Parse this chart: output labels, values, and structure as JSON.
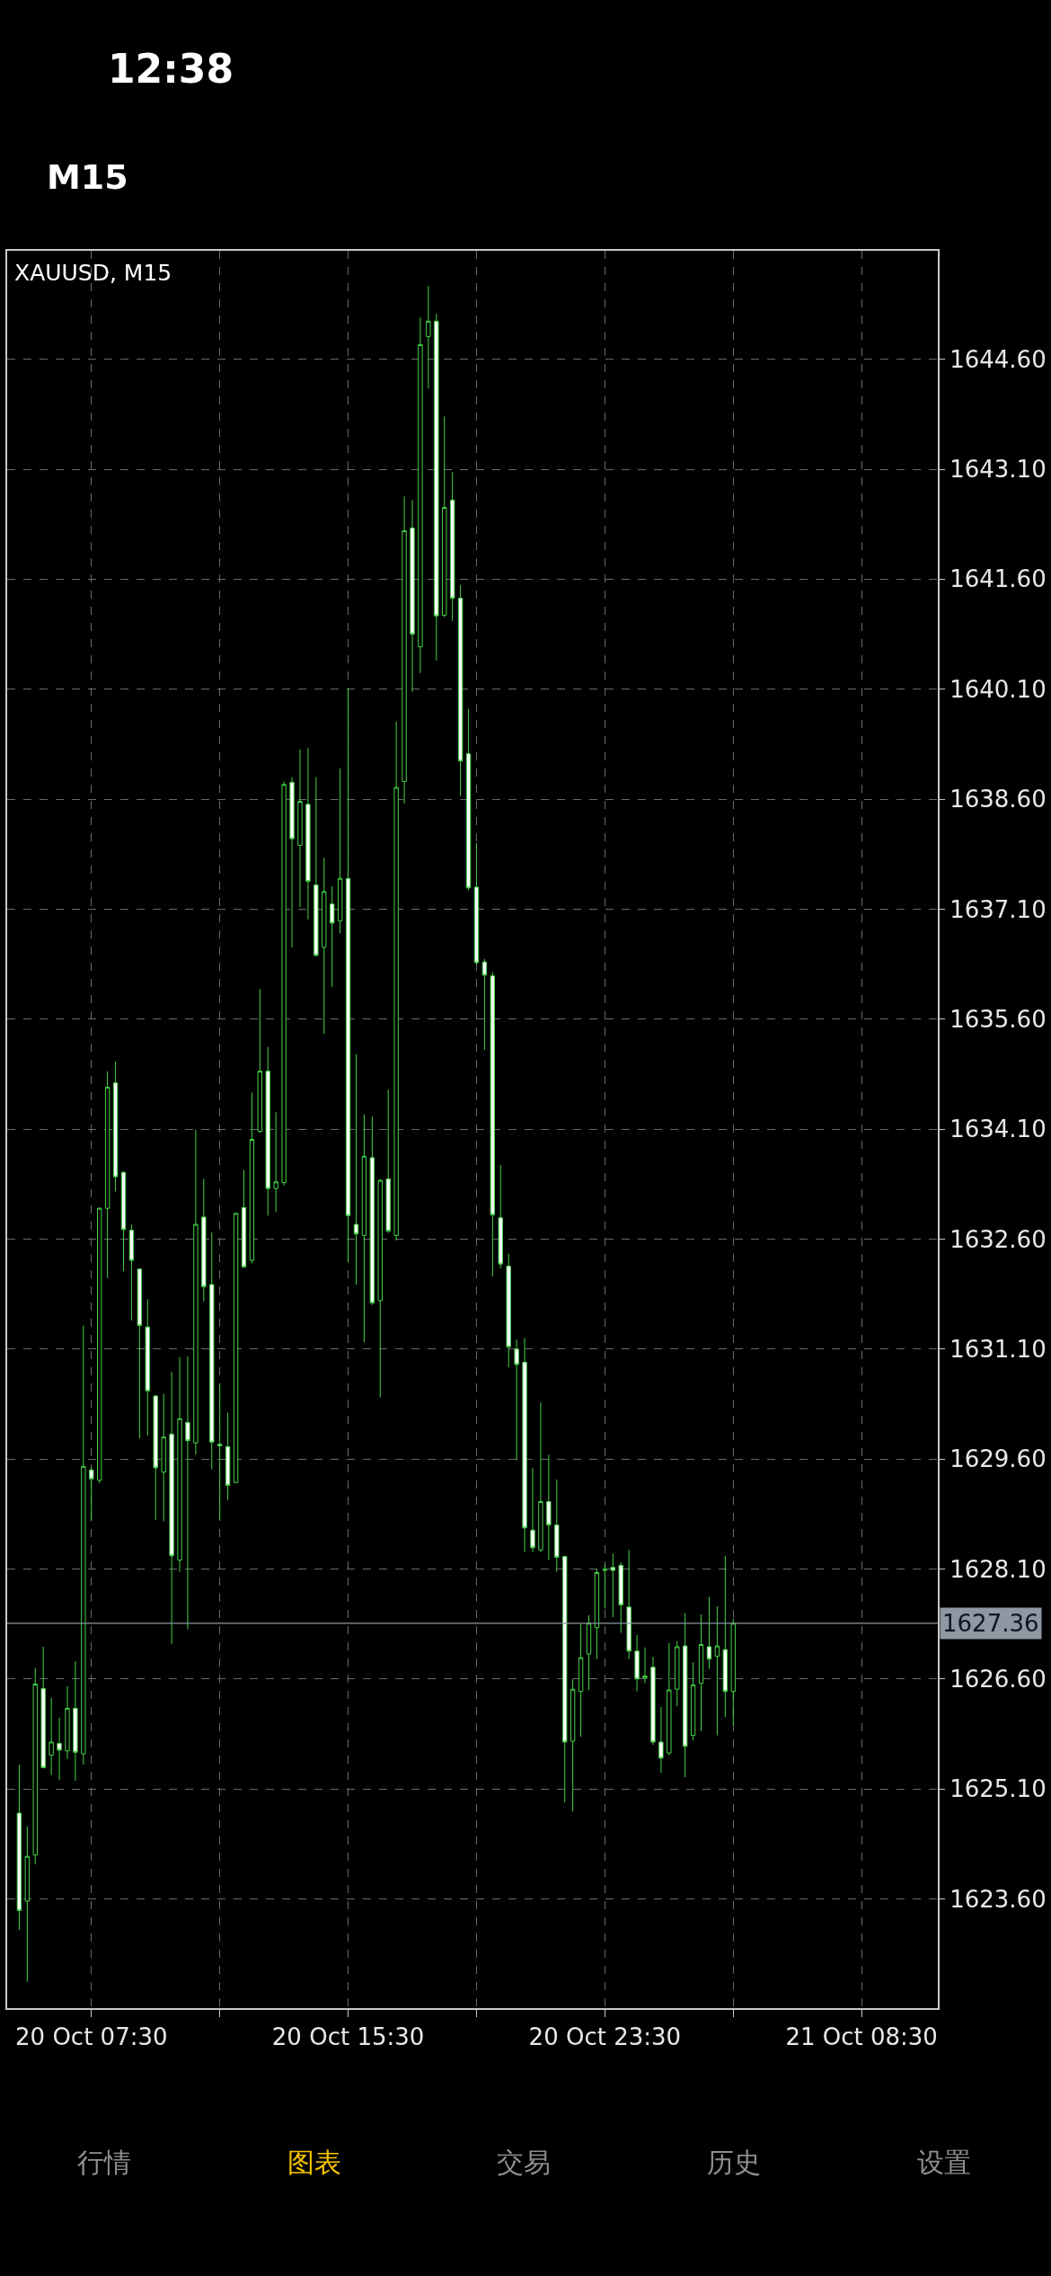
{
  "chart_data": {
    "type": "candlestick",
    "title": "XAUUSD, M15",
    "color": "#46d246",
    "categories": [
      null,
      null,
      null,
      null,
      null,
      null,
      null,
      null,
      null,
      null,
      "20 Oct 07:30",
      null,
      null,
      null,
      null,
      null,
      null,
      null,
      null,
      null,
      null,
      null,
      null,
      null,
      null,
      null,
      null,
      null,
      null,
      null,
      null,
      null,
      null,
      null,
      null,
      null,
      null,
      null,
      null,
      null,
      null,
      null,
      "20 Oct 15:30",
      null,
      null,
      null,
      null,
      null,
      null,
      null,
      null,
      null,
      null,
      null,
      null,
      null,
      null,
      null,
      null,
      null,
      null,
      null,
      null,
      null,
      null,
      null,
      null,
      null,
      null,
      null,
      null,
      null,
      null,
      null,
      "20 Oct 23:30",
      null,
      null,
      null,
      null,
      null,
      null,
      null,
      null,
      null,
      null,
      null,
      null,
      null,
      null,
      null,
      null,
      null,
      null,
      null,
      null,
      null,
      null,
      null,
      null,
      null,
      null,
      null,
      null,
      null,
      null,
      null,
      "21 Oct 08:30",
      null,
      null,
      null,
      null,
      null,
      null,
      null,
      null,
      null
    ],
    "ohlc": [
      null,
      [
        1624.77,
        1625.43,
        1623.18,
        1623.44
      ],
      [
        1623.57,
        1624.59,
        1622.47,
        1624.18
      ],
      [
        1624.2,
        1626.75,
        1624.07,
        1626.53
      ],
      [
        1626.47,
        1627.04,
        1625.38,
        1625.39
      ],
      [
        1625.56,
        1626.34,
        1625.29,
        1625.74
      ],
      [
        1625.72,
        1626.07,
        1625.22,
        1625.63
      ],
      [
        1625.62,
        1626.5,
        1625.51,
        1626.2
      ],
      [
        1626.2,
        1626.84,
        1625.21,
        1625.6
      ],
      [
        1625.58,
        1631.42,
        1625.43,
        1629.5
      ],
      [
        1629.45,
        1629.49,
        1628.76,
        1629.33
      ],
      [
        1629.31,
        1633.03,
        1629.27,
        1633.02
      ],
      [
        1633.02,
        1634.89,
        1632.07,
        1634.67
      ],
      [
        1634.73,
        1635.02,
        1633.25,
        1633.45
      ],
      [
        1633.51,
        1633.52,
        1632.16,
        1632.73
      ],
      [
        1632.72,
        1632.8,
        1631.49,
        1632.31
      ],
      [
        1632.19,
        1632.2,
        1629.88,
        1631.42
      ],
      [
        1631.4,
        1631.78,
        1629.92,
        1630.53
      ],
      [
        1630.46,
        1630.47,
        1628.77,
        1629.48
      ],
      [
        1629.42,
        1630.49,
        1628.75,
        1629.9
      ],
      [
        1629.94,
        1630.79,
        1627.08,
        1628.28
      ],
      [
        1628.22,
        1630.99,
        1628.06,
        1630.15
      ],
      [
        1630.1,
        1631.0,
        1627.28,
        1629.85
      ],
      [
        1629.82,
        1634.09,
        1629.66,
        1632.8
      ],
      [
        1632.9,
        1633.42,
        1631.75,
        1631.95
      ],
      [
        1631.98,
        1632.69,
        1629.46,
        1629.83
      ],
      [
        1629.8,
        1630.63,
        1628.77,
        1629.78
      ],
      [
        1629.77,
        1630.23,
        1629.04,
        1629.24
      ],
      [
        1629.28,
        1632.96,
        1629.27,
        1632.95
      ],
      [
        1633.03,
        1633.54,
        1632.21,
        1632.22
      ],
      [
        1632.31,
        1634.6,
        1632.27,
        1633.96
      ],
      [
        1634.07,
        1636.01,
        1634.05,
        1634.89
      ],
      [
        1634.89,
        1635.22,
        1632.92,
        1633.29
      ],
      [
        1633.29,
        1634.33,
        1632.97,
        1633.38
      ],
      [
        1633.37,
        1638.84,
        1633.33,
        1638.8
      ],
      [
        1638.83,
        1638.9,
        1636.58,
        1638.06
      ],
      [
        1637.97,
        1639.28,
        1637.13,
        1638.57
      ],
      [
        1638.53,
        1639.3,
        1636.96,
        1637.48
      ],
      [
        1637.43,
        1638.9,
        1636.45,
        1636.47
      ],
      [
        1636.58,
        1637.8,
        1635.4,
        1637.34
      ],
      [
        1637.17,
        1637.41,
        1636.04,
        1636.91
      ],
      [
        1636.94,
        1639.02,
        1636.77,
        1637.52
      ],
      [
        1637.52,
        1640.11,
        1632.28,
        1632.92
      ],
      [
        1632.8,
        1635.12,
        1631.98,
        1632.67
      ],
      [
        1632.65,
        1634.3,
        1631.19,
        1633.73
      ],
      [
        1633.71,
        1634.27,
        1631.7,
        1631.73
      ],
      [
        1631.76,
        1633.42,
        1630.44,
        1633.4
      ],
      [
        1633.42,
        1634.64,
        1632.68,
        1632.71
      ],
      [
        1632.65,
        1639.66,
        1632.58,
        1638.76
      ],
      [
        1638.84,
        1642.73,
        1638.54,
        1642.26
      ],
      [
        1642.3,
        1642.68,
        1640.06,
        1640.85
      ],
      [
        1640.68,
        1645.17,
        1640.32,
        1644.8
      ],
      [
        1644.91,
        1645.6,
        1644.2,
        1645.12
      ],
      [
        1645.12,
        1645.22,
        1640.49,
        1641.1
      ],
      [
        1641.11,
        1643.82,
        1641.08,
        1642.58
      ],
      [
        1642.68,
        1643.06,
        1641.03,
        1641.34
      ],
      [
        1641.34,
        1641.52,
        1638.64,
        1639.12
      ],
      [
        1639.22,
        1639.83,
        1637.36,
        1637.39
      ],
      [
        1637.4,
        1638.0,
        1636.34,
        1636.37
      ],
      [
        1636.38,
        1636.42,
        1635.18,
        1636.2
      ],
      [
        1636.19,
        1636.24,
        1632.09,
        1632.93
      ],
      [
        1632.89,
        1633.61,
        1632.2,
        1632.26
      ],
      [
        1632.23,
        1632.4,
        1630.85,
        1631.13
      ],
      [
        1631.1,
        1631.23,
        1629.58,
        1630.89
      ],
      [
        1630.92,
        1631.25,
        1628.33,
        1628.66
      ],
      [
        1628.63,
        1629.48,
        1628.33,
        1628.39
      ],
      [
        1628.36,
        1630.37,
        1628.33,
        1629.02
      ],
      [
        1629.02,
        1629.66,
        1628.22,
        1628.7
      ],
      [
        1628.7,
        1629.32,
        1628.06,
        1628.26
      ],
      [
        1628.27,
        1628.28,
        1624.92,
        1625.74
      ],
      [
        1625.75,
        1626.6,
        1624.79,
        1626.46
      ],
      [
        1626.43,
        1627.35,
        1625.81,
        1626.89
      ],
      [
        1626.94,
        1627.47,
        1626.45,
        1627.36
      ],
      [
        1627.3,
        1628.1,
        1626.87,
        1628.05
      ],
      [
        1628.08,
        1628.16,
        1627.56,
        1628.1
      ],
      [
        1628.12,
        1628.31,
        1627.44,
        1628.08
      ],
      [
        1628.15,
        1628.19,
        1627.23,
        1627.61
      ],
      [
        1627.58,
        1628.36,
        1626.87,
        1626.98
      ],
      [
        1626.98,
        1627.2,
        1626.43,
        1626.6
      ],
      [
        1626.61,
        1627.03,
        1626.54,
        1626.64
      ],
      [
        1626.76,
        1626.9,
        1625.7,
        1625.74
      ],
      [
        1625.74,
        1626.22,
        1625.32,
        1625.52
      ],
      [
        1625.59,
        1627.09,
        1625.56,
        1626.45
      ],
      [
        1626.46,
        1627.12,
        1626.23,
        1627.04
      ],
      [
        1627.05,
        1627.5,
        1625.26,
        1625.68
      ],
      [
        1625.83,
        1626.83,
        1625.76,
        1626.52
      ],
      [
        1626.54,
        1627.48,
        1625.89,
        1627.07
      ],
      [
        1627.04,
        1627.72,
        1626.74,
        1626.87
      ],
      [
        1626.91,
        1627.59,
        1625.83,
        1627.05
      ],
      [
        1627.0,
        1628.28,
        1626.08,
        1626.43
      ],
      [
        1626.43,
        1627.42,
        1625.97,
        1627.36
      ],
      null,
      null,
      null,
      null,
      null,
      null,
      null,
      null,
      null,
      null,
      null,
      null,
      null,
      null,
      null,
      null,
      null,
      null,
      null,
      null,
      null,
      null,
      null,
      null,
      null
    ],
    "ylim": [
      1622.11,
      1646.08
    ],
    "yticks": [
      {
        "value": 1623.6,
        "label": "1623.60"
      },
      {
        "value": 1625.1,
        "label": "1625.10"
      },
      {
        "value": 1626.6,
        "label": "1626.60"
      },
      {
        "value": 1628.1,
        "label": "1628.10"
      },
      {
        "value": 1629.6,
        "label": "1629.60"
      },
      {
        "value": 1631.1,
        "label": "1631.10"
      },
      {
        "value": 1632.6,
        "label": "1632.60"
      },
      {
        "value": 1634.1,
        "label": "1634.10"
      },
      {
        "value": 1635.6,
        "label": "1635.60"
      },
      {
        "value": 1637.1,
        "label": "1637.10"
      },
      {
        "value": 1638.6,
        "label": "1638.60"
      },
      {
        "value": 1640.1,
        "label": "1640.10"
      },
      {
        "value": 1641.6,
        "label": "1641.60"
      },
      {
        "value": 1643.1,
        "label": "1643.10"
      },
      {
        "value": 1644.6,
        "label": "1644.60"
      }
    ],
    "ref_lines": [
      {
        "axis": "y",
        "value": 1627.36,
        "label": "1627.36",
        "color": "#8d98a3"
      }
    ],
    "grid": true,
    "annotations": [
      "12:38",
      "M15",
      "行情",
      "图表",
      "交易",
      "历史",
      "设置"
    ]
  }
}
